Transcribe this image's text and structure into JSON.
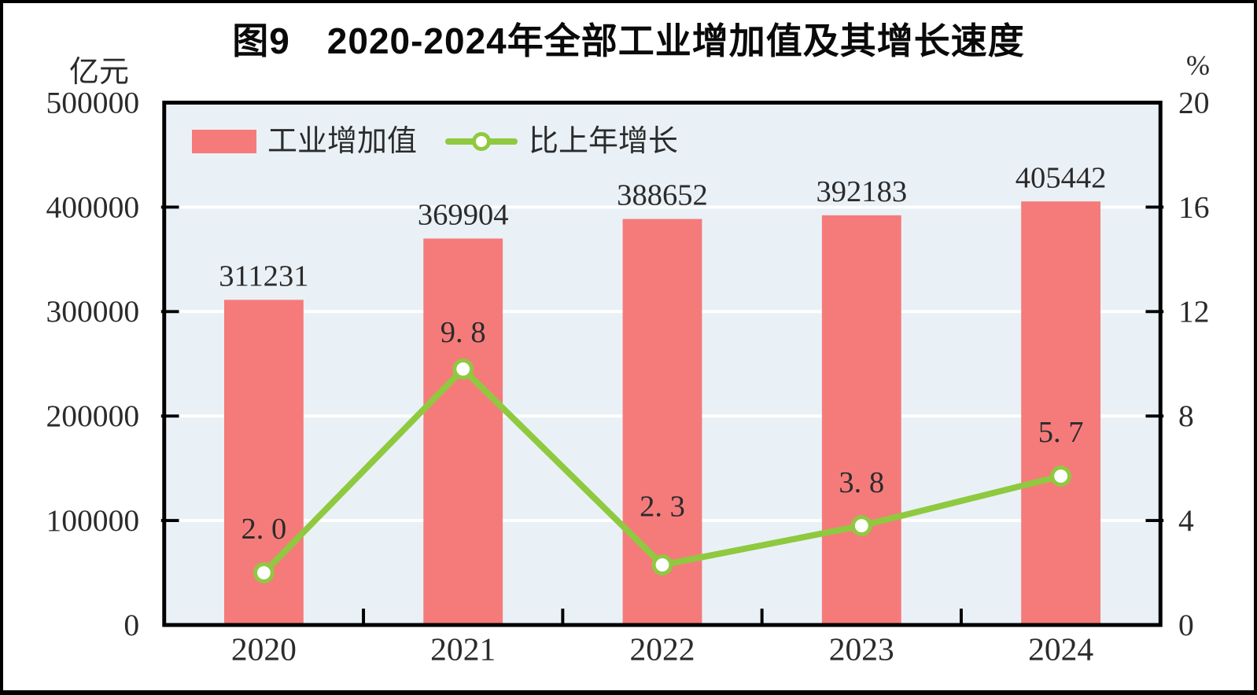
{
  "page": {
    "background_color": "#ffffff",
    "frame_border_color": "#000000"
  },
  "chart_data": {
    "type": "bar+line combo",
    "title": "图9　2020-2024年全部工业增加值及其增长速度",
    "figure_number": "图9",
    "plot_background": "#e9f1f6",
    "grid": "horizontal white gridlines",
    "gridline_color": "#ffffff",
    "axis_color": "#000000",
    "categories": [
      "2020",
      "2021",
      "2022",
      "2023",
      "2024"
    ],
    "left_axis": {
      "unit": "亿元",
      "min": 0,
      "max": 500000,
      "ticks": [
        0,
        100000,
        200000,
        300000,
        400000,
        500000
      ],
      "tick_labels": [
        "0",
        "100000",
        "200000",
        "300000",
        "400000",
        "500000"
      ]
    },
    "right_axis": {
      "unit": "%",
      "min": 0,
      "max": 20,
      "ticks": [
        0,
        4,
        8,
        12,
        16,
        20
      ],
      "tick_labels": [
        "0",
        "4",
        "8",
        "12",
        "16",
        "20"
      ]
    },
    "series": [
      {
        "name": "工业增加值",
        "type": "bar",
        "axis": "left",
        "color": "#f57b7b",
        "values": [
          311231,
          369904,
          388652,
          392183,
          405442
        ],
        "labels": [
          "311231",
          "369904",
          "388652",
          "392183",
          "405442"
        ]
      },
      {
        "name": "比上年增长",
        "type": "line",
        "axis": "right",
        "color": "#8fc93f",
        "marker": "white circle with green ring",
        "values": [
          2.0,
          9.8,
          2.3,
          3.8,
          5.7
        ],
        "labels": [
          "2. 0",
          "9. 8",
          "2. 3",
          "3. 8",
          "5. 7"
        ]
      }
    ],
    "legend": {
      "position": "top-left inside plot",
      "items": [
        "工业增加值",
        "比上年增长"
      ]
    }
  }
}
